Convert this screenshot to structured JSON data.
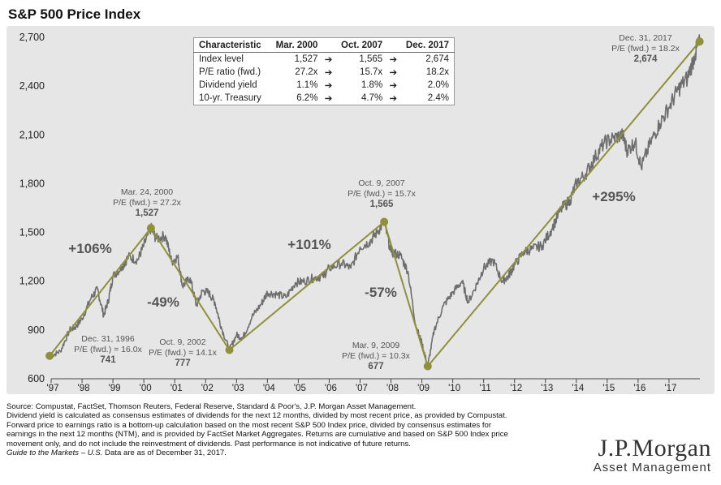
{
  "title": "S&P 500 Price Index",
  "chart_data": {
    "type": "line",
    "ylim": [
      600,
      2700
    ],
    "yticks": [
      600,
      900,
      1200,
      1500,
      1800,
      2100,
      2400,
      2700
    ],
    "ytick_labels": [
      "600",
      "900",
      "1,200",
      "1,500",
      "1,800",
      "2,100",
      "2,400",
      "2,700"
    ],
    "xlim": [
      1997.0,
      2018.0
    ],
    "xticks": [
      1997,
      1998,
      1999,
      2000,
      2001,
      2002,
      2003,
      2004,
      2005,
      2006,
      2007,
      2008,
      2009,
      2010,
      2011,
      2012,
      2013,
      2014,
      2015,
      2016,
      2017
    ],
    "xtick_labels": [
      "'97",
      "'98",
      "'99",
      "'00",
      "'01",
      "'02",
      "'03",
      "'04",
      "'05",
      "'06",
      "'07",
      "'08",
      "'09",
      "'10",
      "'11",
      "'12",
      "'13",
      "'14",
      "'15",
      "'16",
      "'17"
    ],
    "grid": false,
    "series": [
      {
        "values_x": [
          1997.0,
          1997.3,
          1997.6,
          1997.8,
          1998.0,
          1998.3,
          1998.5,
          1998.7,
          1998.85,
          1999.0,
          1999.3,
          1999.5,
          1999.8,
          2000.0,
          2000.23,
          2000.4,
          2000.7,
          2000.9,
          2001.1,
          2001.25,
          2001.5,
          2001.7,
          2001.9,
          2002.1,
          2002.3,
          2002.5,
          2002.77,
          2003.0,
          2003.2,
          2003.5,
          2003.8,
          2004.0,
          2004.3,
          2004.6,
          2004.9,
          2005.2,
          2005.5,
          2005.8,
          2006.0,
          2006.4,
          2006.7,
          2007.0,
          2007.3,
          2007.55,
          2007.78,
          2008.0,
          2008.3,
          2008.55,
          2008.8,
          2009.0,
          2009.19,
          2009.4,
          2009.7,
          2010.0,
          2010.3,
          2010.5,
          2010.8,
          2011.0,
          2011.3,
          2011.6,
          2011.8,
          2012.0,
          2012.3,
          2012.6,
          2012.9,
          2013.2,
          2013.5,
          2013.8,
          2014.0,
          2014.3,
          2014.6,
          2014.9,
          2015.2,
          2015.5,
          2015.65,
          2015.9,
          2016.1,
          2016.4,
          2016.7,
          2017.0,
          2017.3,
          2017.6,
          2017.85,
          2018.0
        ],
        "values_y": [
          741,
          770,
          900,
          920,
          970,
          1100,
          1150,
          990,
          1080,
          1230,
          1290,
          1350,
          1330,
          1420,
          1527,
          1460,
          1480,
          1320,
          1350,
          1170,
          1220,
          1050,
          1140,
          1130,
          1070,
          920,
          777,
          870,
          850,
          980,
          1060,
          1130,
          1120,
          1100,
          1190,
          1200,
          1220,
          1230,
          1280,
          1310,
          1280,
          1410,
          1440,
          1500,
          1565,
          1380,
          1360,
          1260,
          930,
          820,
          677,
          900,
          1050,
          1130,
          1200,
          1070,
          1190,
          1280,
          1330,
          1200,
          1230,
          1300,
          1380,
          1400,
          1420,
          1520,
          1640,
          1700,
          1800,
          1860,
          1960,
          2050,
          2080,
          2100,
          2000,
          2060,
          1900,
          2050,
          2170,
          2270,
          2380,
          2450,
          2600,
          2674
        ]
      }
    ],
    "trend_points": [
      {
        "x": 1996.95,
        "y": 741
      },
      {
        "x": 2000.23,
        "y": 1527
      },
      {
        "x": 2002.77,
        "y": 777
      },
      {
        "x": 2007.78,
        "y": 1565
      },
      {
        "x": 2009.19,
        "y": 677
      },
      {
        "x": 2017.99,
        "y": 2674
      }
    ],
    "annotations": {
      "p1": [
        "Dec. 31, 1996",
        "P/E (fwd.) = 16.0x",
        "741"
      ],
      "p2": [
        "Mar. 24, 2000",
        "P/E (fwd.) = 27.2x",
        "1,527"
      ],
      "p3": [
        "Oct. 9, 2002",
        "P/E (fwd.) = 14.1x",
        "777"
      ],
      "p4": [
        "Oct. 9, 2007",
        "P/E (fwd.) = 15.7x",
        "1,565"
      ],
      "p5": [
        "Mar. 9, 2009",
        "P/E (fwd.) = 10.3x",
        "677"
      ],
      "p6": [
        "Dec. 31, 2017",
        "P/E (fwd.) = 18.2x",
        "2,674"
      ]
    },
    "changes": {
      "c1": "+106%",
      "c2": "-49%",
      "c3": "+101%",
      "c4": "-57%",
      "c5": "+295%"
    }
  },
  "table": {
    "headers": [
      "Characteristic",
      "Mar. 2000",
      "Oct. 2007",
      "Dec. 2017"
    ],
    "rows": [
      [
        "Index level",
        "1,527",
        "1,565",
        "2,674"
      ],
      [
        "P/E ratio (fwd.)",
        "27.2x",
        "15.7x",
        "18.2x"
      ],
      [
        "Dividend yield",
        "1.1%",
        "1.8%",
        "2.0%"
      ],
      [
        "10-yr. Treasury",
        "6.2%",
        "4.7%",
        "2.4%"
      ]
    ]
  },
  "footnotes": {
    "l1": "Source: Compustat, FactSet, Thomson Reuters, Federal Reserve, Standard & Poor's, J.P. Morgan Asset Management.",
    "l2": "Dividend yield is calculated as consensus estimates of dividends for the next 12 months, divided by most recent price, as provided by Compustat.",
    "l3": "Forward price to earnings ratio is a bottom-up calculation based on the most recent S&P 500 Index price, divided by consensus estimates for",
    "l4": "earnings in the next 12 months (NTM), and is provided by FactSet Market Aggregates. Returns are cumulative and based on S&P 500 Index price",
    "l5": "movement only, and do not include the reinvestment of dividends. Past performance is not indicative of future returns.",
    "l6_italic": "Guide to the Markets – U.S.",
    "l6_rest": " Data are as of December 31, 2017."
  },
  "logo": {
    "name": "J.P.Morgan",
    "sub": "Asset Management"
  },
  "colors": {
    "price_line": "#6e6e6e",
    "trend": "#8f8f3c",
    "background": "#e6e6e6",
    "text": "#555555"
  }
}
